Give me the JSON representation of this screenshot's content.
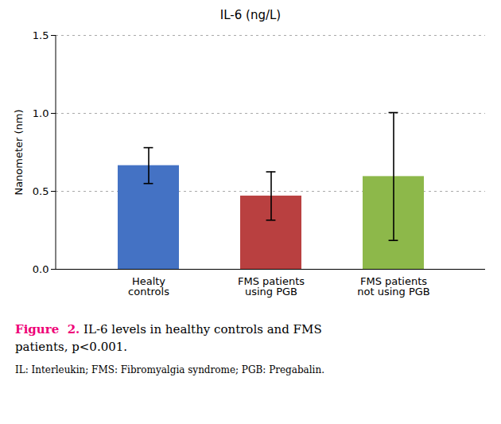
{
  "chart_data": {
    "type": "bar",
    "title": "IL-6 (ng/L)",
    "ylabel": "Nanometer (nm)",
    "categories": [
      "Healty\ncontrols",
      "FMS patients\nusing PGB",
      "FMS patients\nnot using PGB"
    ],
    "values": [
      0.665,
      0.47,
      0.595
    ],
    "errors": [
      0.115,
      0.155,
      0.41
    ],
    "colors": [
      "#4472C4",
      "#B94040",
      "#8DB84A"
    ],
    "ylim": [
      0,
      1.5
    ],
    "yticks": [
      {
        "value": 0,
        "label": "0.0"
      },
      0.5,
      {
        "value": 1,
        "label": "1.0"
      },
      1.5
    ],
    "grid": true,
    "caption": {
      "lead": "Figure  2.",
      "color": "#EE0077",
      "lines": [
        " IL-6 levels in healthy controls and FMS",
        "patients, p<0.001."
      ]
    },
    "footnote": "IL: Interleukin; FMS: Fibromyalgia syndrome; PGB: Pregabalin."
  }
}
